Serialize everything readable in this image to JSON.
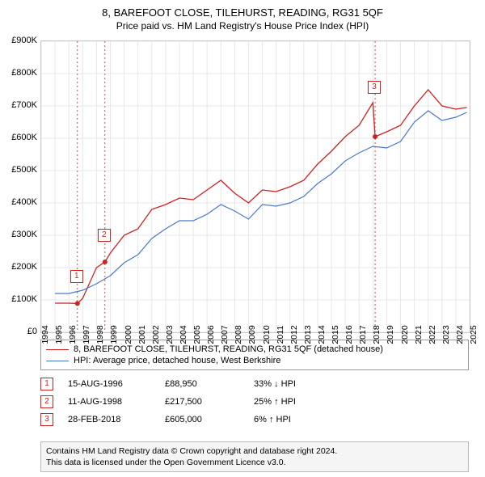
{
  "title": "8, BAREFOOT CLOSE, TILEHURST, READING, RG31 5QF",
  "subtitle": "Price paid vs. HM Land Registry's House Price Index (HPI)",
  "chart": {
    "type": "line",
    "background_color": "#ffffff",
    "grid_color": "#e7e7e7",
    "grid_major_color": "#d0d0d0",
    "ylim": [
      0,
      900000
    ],
    "ytick_step": 100000,
    "yticks": [
      "£0",
      "£100K",
      "£200K",
      "£300K",
      "£400K",
      "£500K",
      "£600K",
      "£700K",
      "£800K",
      "£900K"
    ],
    "xlim": [
      1994,
      2025
    ],
    "xticks": [
      1994,
      1995,
      1996,
      1997,
      1998,
      1999,
      2000,
      2001,
      2002,
      2003,
      2004,
      2005,
      2006,
      2007,
      2008,
      2009,
      2010,
      2011,
      2012,
      2013,
      2014,
      2015,
      2016,
      2017,
      2018,
      2019,
      2020,
      2021,
      2022,
      2023,
      2024,
      2025
    ],
    "series": [
      {
        "name": "property",
        "legend_label": "8, BAREFOOT CLOSE, TILEHURST, READING, RG31 5QF (detached house)",
        "color": "#d02020",
        "line_width": 1.3,
        "x": [
          1995,
          1996,
          1996.62,
          1997,
          1998,
          1998.61,
          1999,
          2000,
          2001,
          2002,
          2003,
          2004,
          2005,
          2006,
          2007,
          2008,
          2009,
          2010,
          2011,
          2012,
          2013,
          2014,
          2015,
          2016,
          2017,
          2018,
          2018.16,
          2019,
          2020,
          2021,
          2022,
          2023,
          2024,
          2024.8
        ],
        "y": [
          90000,
          90000,
          88950,
          105000,
          200000,
          217500,
          245000,
          300000,
          320000,
          380000,
          395000,
          415000,
          410000,
          440000,
          470000,
          430000,
          400000,
          440000,
          435000,
          450000,
          470000,
          520000,
          560000,
          605000,
          640000,
          710000,
          605000,
          620000,
          640000,
          700000,
          750000,
          700000,
          690000,
          695000
        ]
      },
      {
        "name": "hpi",
        "legend_label": "HPI: Average price, detached house, West Berkshire",
        "color": "#4a78d0",
        "line_width": 1.2,
        "x": [
          1995,
          1996,
          1997,
          1998,
          1999,
          2000,
          2001,
          2002,
          2003,
          2004,
          2005,
          2006,
          2007,
          2008,
          2009,
          2010,
          2011,
          2012,
          2013,
          2014,
          2015,
          2016,
          2017,
          2018,
          2019,
          2020,
          2021,
          2022,
          2023,
          2024,
          2024.8
        ],
        "y": [
          120000,
          120000,
          130000,
          150000,
          175000,
          215000,
          240000,
          290000,
          320000,
          345000,
          345000,
          365000,
          395000,
          375000,
          350000,
          395000,
          390000,
          400000,
          420000,
          460000,
          490000,
          530000,
          555000,
          575000,
          570000,
          590000,
          650000,
          685000,
          655000,
          665000,
          680000
        ]
      }
    ],
    "sale_markers": [
      {
        "n": "1",
        "x": 1996.62,
        "y": 88950,
        "color": "#d02020",
        "box_above": true
      },
      {
        "n": "2",
        "x": 1998.61,
        "y": 217500,
        "color": "#d02020",
        "box_above": true
      },
      {
        "n": "3",
        "x": 2018.16,
        "y": 605000,
        "color": "#d02020",
        "box_above": true,
        "box_y": 720000
      }
    ],
    "label_fontsize": 11,
    "tick_fontsize": 10.5
  },
  "legend": {
    "rows": [
      {
        "color": "#d02020",
        "text": "8, BAREFOOT CLOSE, TILEHURST, READING, RG31 5QF (detached house)"
      },
      {
        "color": "#4a78d0",
        "text": "HPI: Average price, detached house, West Berkshire"
      }
    ]
  },
  "sales": [
    {
      "n": "1",
      "color": "#d02020",
      "date": "15-AUG-1996",
      "price": "£88,950",
      "delta": "33% ↓ HPI"
    },
    {
      "n": "2",
      "color": "#d02020",
      "date": "11-AUG-1998",
      "price": "£217,500",
      "delta": "25% ↑ HPI"
    },
    {
      "n": "3",
      "color": "#d02020",
      "date": "28-FEB-2018",
      "price": "£605,000",
      "delta": "6% ↑ HPI"
    }
  ],
  "footer": {
    "line1": "Contains HM Land Registry data © Crown copyright and database right 2024.",
    "line2": "This data is licensed under the Open Government Licence v3.0."
  }
}
